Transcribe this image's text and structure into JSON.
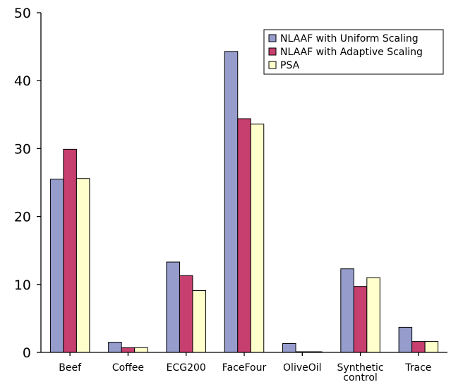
{
  "chart_data": {
    "type": "bar",
    "title": "",
    "xlabel": "",
    "ylabel": "",
    "ylim": [
      0,
      50
    ],
    "yticks": [
      "0",
      "10",
      "20",
      "30",
      "40",
      "50"
    ],
    "categories": [
      [
        "Beef"
      ],
      [
        "Coffee"
      ],
      [
        "ECG200"
      ],
      [
        "FaceFour"
      ],
      [
        "OliveOil"
      ],
      [
        "Synthetic",
        "control"
      ],
      [
        "Trace"
      ]
    ],
    "series": [
      {
        "name": "NLAAF with Uniform Scaling",
        "color": "#969ccc",
        "values": [
          25.5,
          1.5,
          13.3,
          44.3,
          1.3,
          12.3,
          3.7
        ]
      },
      {
        "name": "NLAAF with Adaptive Scaling",
        "color": "#c73f6f",
        "values": [
          29.9,
          0.7,
          11.3,
          34.4,
          0.1,
          9.7,
          1.6
        ]
      },
      {
        "name": "PSA",
        "color": "#ffffcc",
        "values": [
          25.6,
          0.7,
          9.1,
          33.6,
          0.1,
          11.0,
          1.6
        ]
      }
    ],
    "legend_position": "top-right",
    "grid": false
  }
}
